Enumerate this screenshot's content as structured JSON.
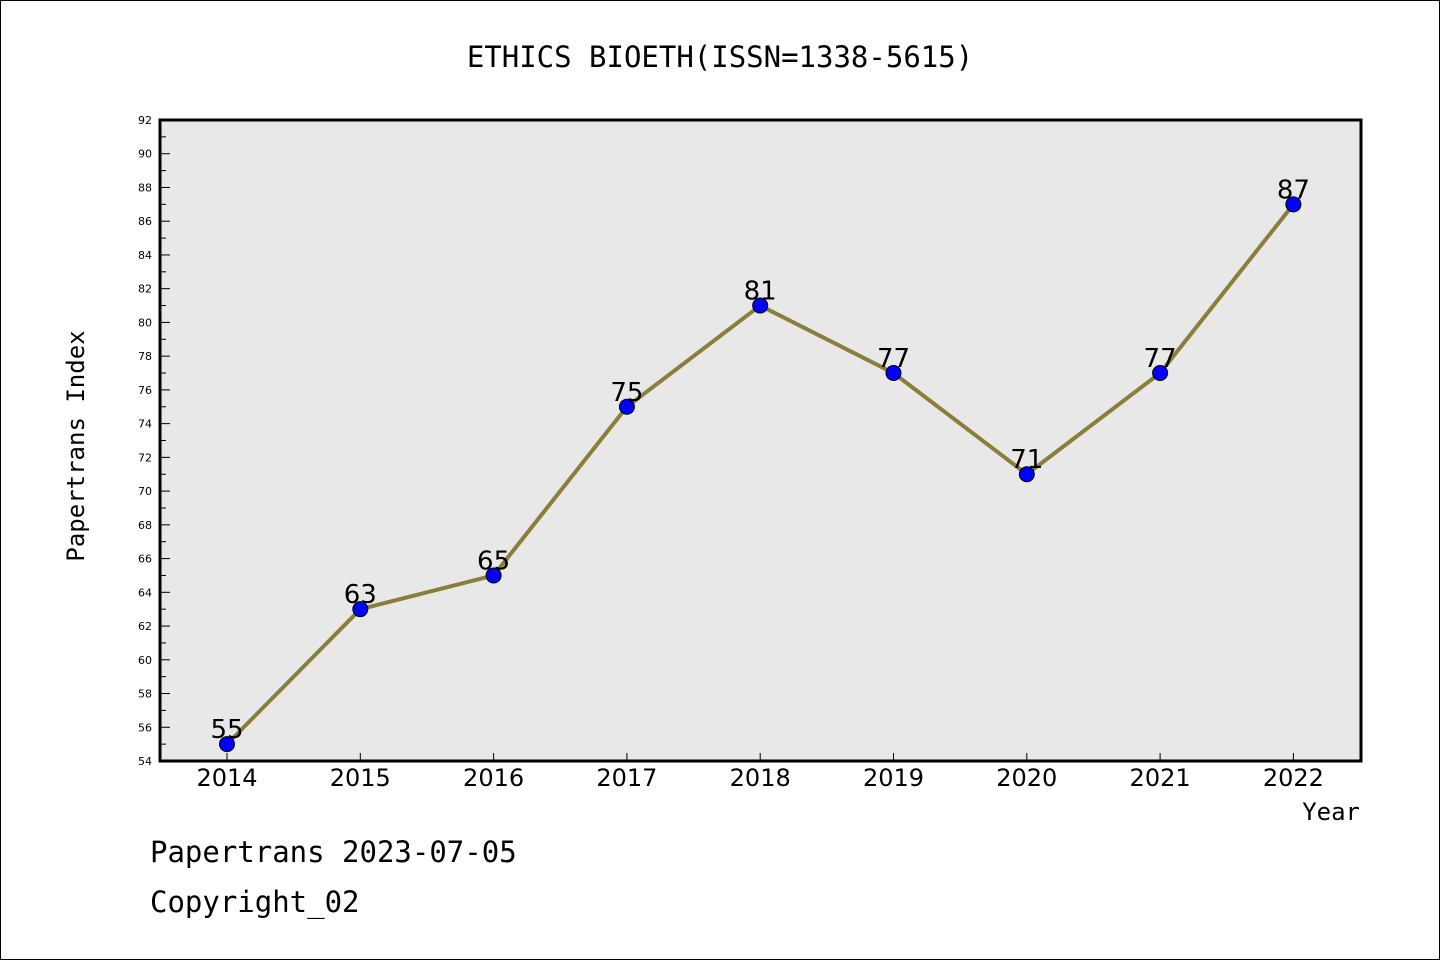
{
  "chart_data": {
    "type": "line",
    "title": "ETHICS BIOETH(ISSN=1338-5615)",
    "xlabel": "Year",
    "ylabel": "Papertrans Index",
    "categories": [
      "2014",
      "2015",
      "2016",
      "2017",
      "2018",
      "2019",
      "2020",
      "2021",
      "2022"
    ],
    "values": [
      55,
      63,
      65,
      75,
      81,
      77,
      71,
      77,
      87
    ],
    "ylim": [
      54,
      92
    ],
    "ytick_step": 2,
    "grid": false,
    "colors": {
      "line": "#8B7D3A",
      "marker": "#0000FF",
      "plot_background": "#E8E8E8"
    }
  },
  "footer": {
    "date_line": "Papertrans 2023-07-05",
    "copyright": "Copyright_02"
  }
}
